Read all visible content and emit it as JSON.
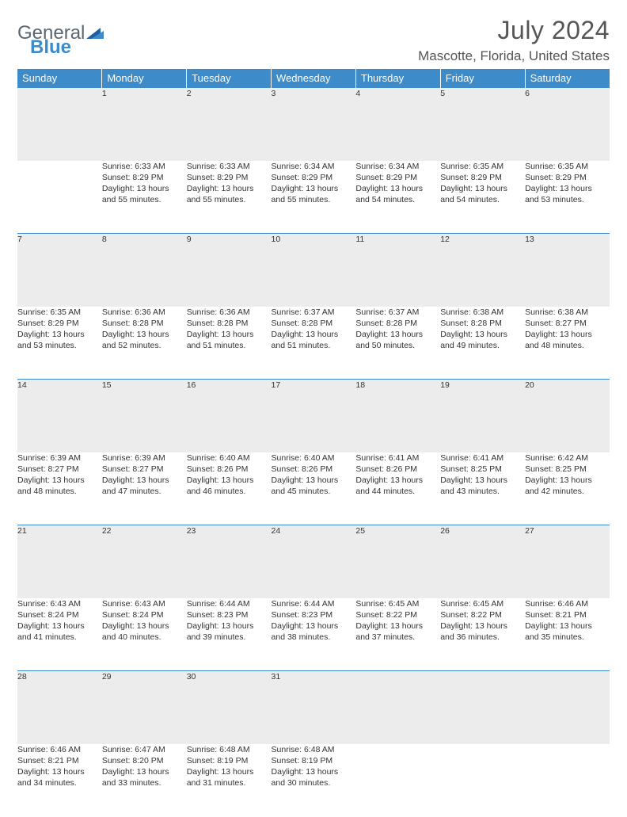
{
  "brand": {
    "part1": "General",
    "part2": "Blue"
  },
  "title": {
    "month_year": "July 2024",
    "location": "Mascotte, Florida, United States"
  },
  "colors": {
    "header_bg": "#3d8bc8",
    "daynum_bg": "#ececec",
    "row_divider": "#3d8bc8",
    "text": "#333333"
  },
  "weekdays": [
    "Sunday",
    "Monday",
    "Tuesday",
    "Wednesday",
    "Thursday",
    "Friday",
    "Saturday"
  ],
  "first_weekday_index": 1,
  "days": [
    {
      "n": 1,
      "sr": "6:33 AM",
      "ss": "8:29 PM",
      "dl": "13 hours and 55 minutes."
    },
    {
      "n": 2,
      "sr": "6:33 AM",
      "ss": "8:29 PM",
      "dl": "13 hours and 55 minutes."
    },
    {
      "n": 3,
      "sr": "6:34 AM",
      "ss": "8:29 PM",
      "dl": "13 hours and 55 minutes."
    },
    {
      "n": 4,
      "sr": "6:34 AM",
      "ss": "8:29 PM",
      "dl": "13 hours and 54 minutes."
    },
    {
      "n": 5,
      "sr": "6:35 AM",
      "ss": "8:29 PM",
      "dl": "13 hours and 54 minutes."
    },
    {
      "n": 6,
      "sr": "6:35 AM",
      "ss": "8:29 PM",
      "dl": "13 hours and 53 minutes."
    },
    {
      "n": 7,
      "sr": "6:35 AM",
      "ss": "8:29 PM",
      "dl": "13 hours and 53 minutes."
    },
    {
      "n": 8,
      "sr": "6:36 AM",
      "ss": "8:28 PM",
      "dl": "13 hours and 52 minutes."
    },
    {
      "n": 9,
      "sr": "6:36 AM",
      "ss": "8:28 PM",
      "dl": "13 hours and 51 minutes."
    },
    {
      "n": 10,
      "sr": "6:37 AM",
      "ss": "8:28 PM",
      "dl": "13 hours and 51 minutes."
    },
    {
      "n": 11,
      "sr": "6:37 AM",
      "ss": "8:28 PM",
      "dl": "13 hours and 50 minutes."
    },
    {
      "n": 12,
      "sr": "6:38 AM",
      "ss": "8:28 PM",
      "dl": "13 hours and 49 minutes."
    },
    {
      "n": 13,
      "sr": "6:38 AM",
      "ss": "8:27 PM",
      "dl": "13 hours and 48 minutes."
    },
    {
      "n": 14,
      "sr": "6:39 AM",
      "ss": "8:27 PM",
      "dl": "13 hours and 48 minutes."
    },
    {
      "n": 15,
      "sr": "6:39 AM",
      "ss": "8:27 PM",
      "dl": "13 hours and 47 minutes."
    },
    {
      "n": 16,
      "sr": "6:40 AM",
      "ss": "8:26 PM",
      "dl": "13 hours and 46 minutes."
    },
    {
      "n": 17,
      "sr": "6:40 AM",
      "ss": "8:26 PM",
      "dl": "13 hours and 45 minutes."
    },
    {
      "n": 18,
      "sr": "6:41 AM",
      "ss": "8:26 PM",
      "dl": "13 hours and 44 minutes."
    },
    {
      "n": 19,
      "sr": "6:41 AM",
      "ss": "8:25 PM",
      "dl": "13 hours and 43 minutes."
    },
    {
      "n": 20,
      "sr": "6:42 AM",
      "ss": "8:25 PM",
      "dl": "13 hours and 42 minutes."
    },
    {
      "n": 21,
      "sr": "6:43 AM",
      "ss": "8:24 PM",
      "dl": "13 hours and 41 minutes."
    },
    {
      "n": 22,
      "sr": "6:43 AM",
      "ss": "8:24 PM",
      "dl": "13 hours and 40 minutes."
    },
    {
      "n": 23,
      "sr": "6:44 AM",
      "ss": "8:23 PM",
      "dl": "13 hours and 39 minutes."
    },
    {
      "n": 24,
      "sr": "6:44 AM",
      "ss": "8:23 PM",
      "dl": "13 hours and 38 minutes."
    },
    {
      "n": 25,
      "sr": "6:45 AM",
      "ss": "8:22 PM",
      "dl": "13 hours and 37 minutes."
    },
    {
      "n": 26,
      "sr": "6:45 AM",
      "ss": "8:22 PM",
      "dl": "13 hours and 36 minutes."
    },
    {
      "n": 27,
      "sr": "6:46 AM",
      "ss": "8:21 PM",
      "dl": "13 hours and 35 minutes."
    },
    {
      "n": 28,
      "sr": "6:46 AM",
      "ss": "8:21 PM",
      "dl": "13 hours and 34 minutes."
    },
    {
      "n": 29,
      "sr": "6:47 AM",
      "ss": "8:20 PM",
      "dl": "13 hours and 33 minutes."
    },
    {
      "n": 30,
      "sr": "6:48 AM",
      "ss": "8:19 PM",
      "dl": "13 hours and 31 minutes."
    },
    {
      "n": 31,
      "sr": "6:48 AM",
      "ss": "8:19 PM",
      "dl": "13 hours and 30 minutes."
    }
  ],
  "labels": {
    "sunrise": "Sunrise:",
    "sunset": "Sunset:",
    "daylight": "Daylight:"
  }
}
